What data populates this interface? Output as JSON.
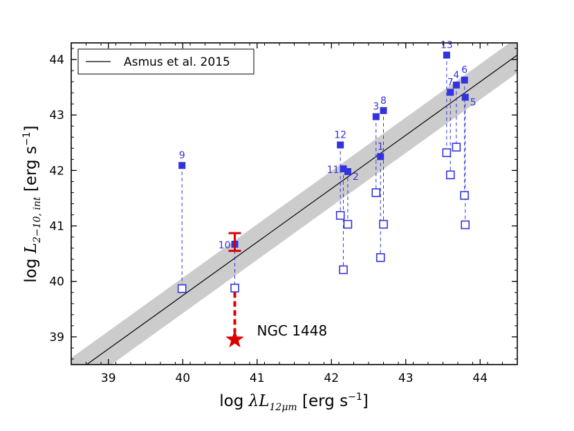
{
  "chart_data": {
    "type": "scatter",
    "xlabel_prefix": "log ",
    "xlabel_sym": "λL",
    "xlabel_sub": "12μm",
    "xlabel_unit": " [erg s",
    "xlabel_exp": "−1",
    "xlabel_close": "]",
    "ylabel_prefix": "log ",
    "ylabel_sym": "L",
    "ylabel_sub": "2−10, int",
    "ylabel_unit": " [erg s",
    "ylabel_exp": "−1",
    "ylabel_close": "]",
    "xlim": [
      38.5,
      44.5
    ],
    "ylim": [
      38.5,
      44.3
    ],
    "xticks": [
      39,
      40,
      41,
      42,
      43,
      44
    ],
    "yticks": [
      39,
      40,
      41,
      42,
      43,
      44
    ],
    "relation": {
      "name": "Asmus et al. 2015",
      "x": [
        38.5,
        44.5
      ],
      "y": [
        38.3,
        44.08
      ],
      "scatter_dex": 0.32
    },
    "legend": {
      "label": "Asmus et al. 2015",
      "position": "top-left"
    },
    "sources": [
      {
        "id": "1",
        "x_filled": 42.66,
        "y_filled": 42.25,
        "x_open": 42.66,
        "y_open": 40.43,
        "label_pos": "upper"
      },
      {
        "id": "2",
        "x_filled": 42.22,
        "y_filled": 41.98,
        "x_open": 42.22,
        "y_open": 41.03,
        "label_pos": "right"
      },
      {
        "id": "3",
        "x_filled": 42.6,
        "y_filled": 42.97,
        "x_open": 42.6,
        "y_open": 41.6,
        "label_pos": "upper"
      },
      {
        "id": "4",
        "x_filled": 43.68,
        "y_filled": 43.54,
        "x_open": 43.68,
        "y_open": 42.42,
        "label_pos": "upper"
      },
      {
        "id": "5",
        "x_filled": 43.8,
        "y_filled": 43.32,
        "x_open": 43.8,
        "y_open": 41.02,
        "label_pos": "right"
      },
      {
        "id": "6",
        "x_filled": 43.79,
        "y_filled": 43.63,
        "x_open": 43.79,
        "y_open": 41.55,
        "label_pos": "upper"
      },
      {
        "id": "7",
        "x_filled": 43.6,
        "y_filled": 43.41,
        "x_open": 43.6,
        "y_open": 41.92,
        "label_pos": "upper"
      },
      {
        "id": "8",
        "x_filled": 42.7,
        "y_filled": 43.08,
        "x_open": 42.7,
        "y_open": 41.03,
        "label_pos": "upper"
      },
      {
        "id": "9",
        "x_filled": 39.99,
        "y_filled": 42.09,
        "x_open": 39.99,
        "y_open": 39.87,
        "label_pos": "upper"
      },
      {
        "id": "10",
        "x_filled": 40.7,
        "y_filled": 40.67,
        "x_open": 40.7,
        "y_open": 39.88,
        "label_pos": "left"
      },
      {
        "id": "11",
        "x_filled": 42.16,
        "y_filled": 42.03,
        "x_open": 42.16,
        "y_open": 40.21,
        "label_pos": "left"
      },
      {
        "id": "12",
        "x_filled": 42.12,
        "y_filled": 42.46,
        "x_open": 42.12,
        "y_open": 41.19,
        "label_pos": "upper"
      },
      {
        "id": "13",
        "x_filled": 43.55,
        "y_filled": 44.08,
        "x_open": 43.55,
        "y_open": 42.32,
        "label_pos": "upper"
      }
    ],
    "highlight": {
      "name": "NGC 1448",
      "x": 40.7,
      "y": 38.95,
      "x_open": 40.7,
      "y_open": 39.88,
      "error_y": 40.71,
      "error_low": 40.55,
      "error_high": 40.87
    },
    "colors": {
      "points": "#3333dd",
      "highlight": "#dd0000",
      "band": "#cccccc",
      "line": "#000000"
    }
  }
}
